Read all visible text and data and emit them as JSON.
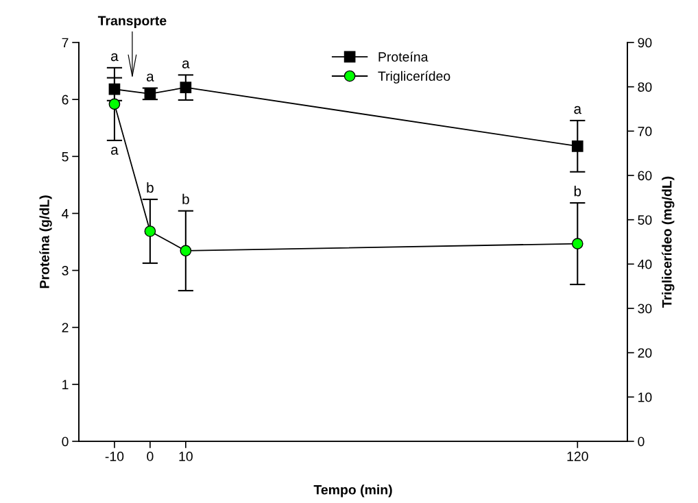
{
  "chart_data": {
    "type": "line",
    "xlabel": "Tempo (min)",
    "ylabel": "Proteína (g/dL)",
    "y2label": "Triglicerídeo (mg/dL)",
    "x": [
      -10,
      0,
      10,
      120
    ],
    "series": [
      {
        "name": "Proteína",
        "color": "#000000",
        "marker": "square",
        "values": [
          6.18,
          6.1,
          6.21,
          5.18
        ],
        "errors": [
          0.2,
          0.1,
          0.22,
          0.45
        ],
        "value_labels": [
          "a",
          "a",
          "a",
          "a"
        ]
      },
      {
        "name": "Triglicerídeo",
        "color": "#00ff00",
        "marker": "circle",
        "axis": "y2",
        "values": [
          76.1,
          47.4,
          43.0,
          44.6
        ],
        "errors": [
          8.2,
          7.2,
          9.0,
          9.2
        ],
        "value_labels": [
          "a",
          "b",
          "b",
          "b"
        ]
      }
    ],
    "xlim": [
      -20,
      134
    ],
    "xticks": [
      -10,
      0,
      10,
      120
    ],
    "ylim": [
      0,
      7
    ],
    "yticks": [
      0,
      1,
      2,
      3,
      4,
      5,
      6,
      7
    ],
    "y2lim": [
      0,
      90
    ],
    "y2ticks": [
      0,
      10,
      20,
      30,
      40,
      50,
      60,
      70,
      80,
      90
    ],
    "grid": false,
    "legend": "top",
    "line_style": "solid",
    "annotations": [
      "Transporte"
    ]
  }
}
